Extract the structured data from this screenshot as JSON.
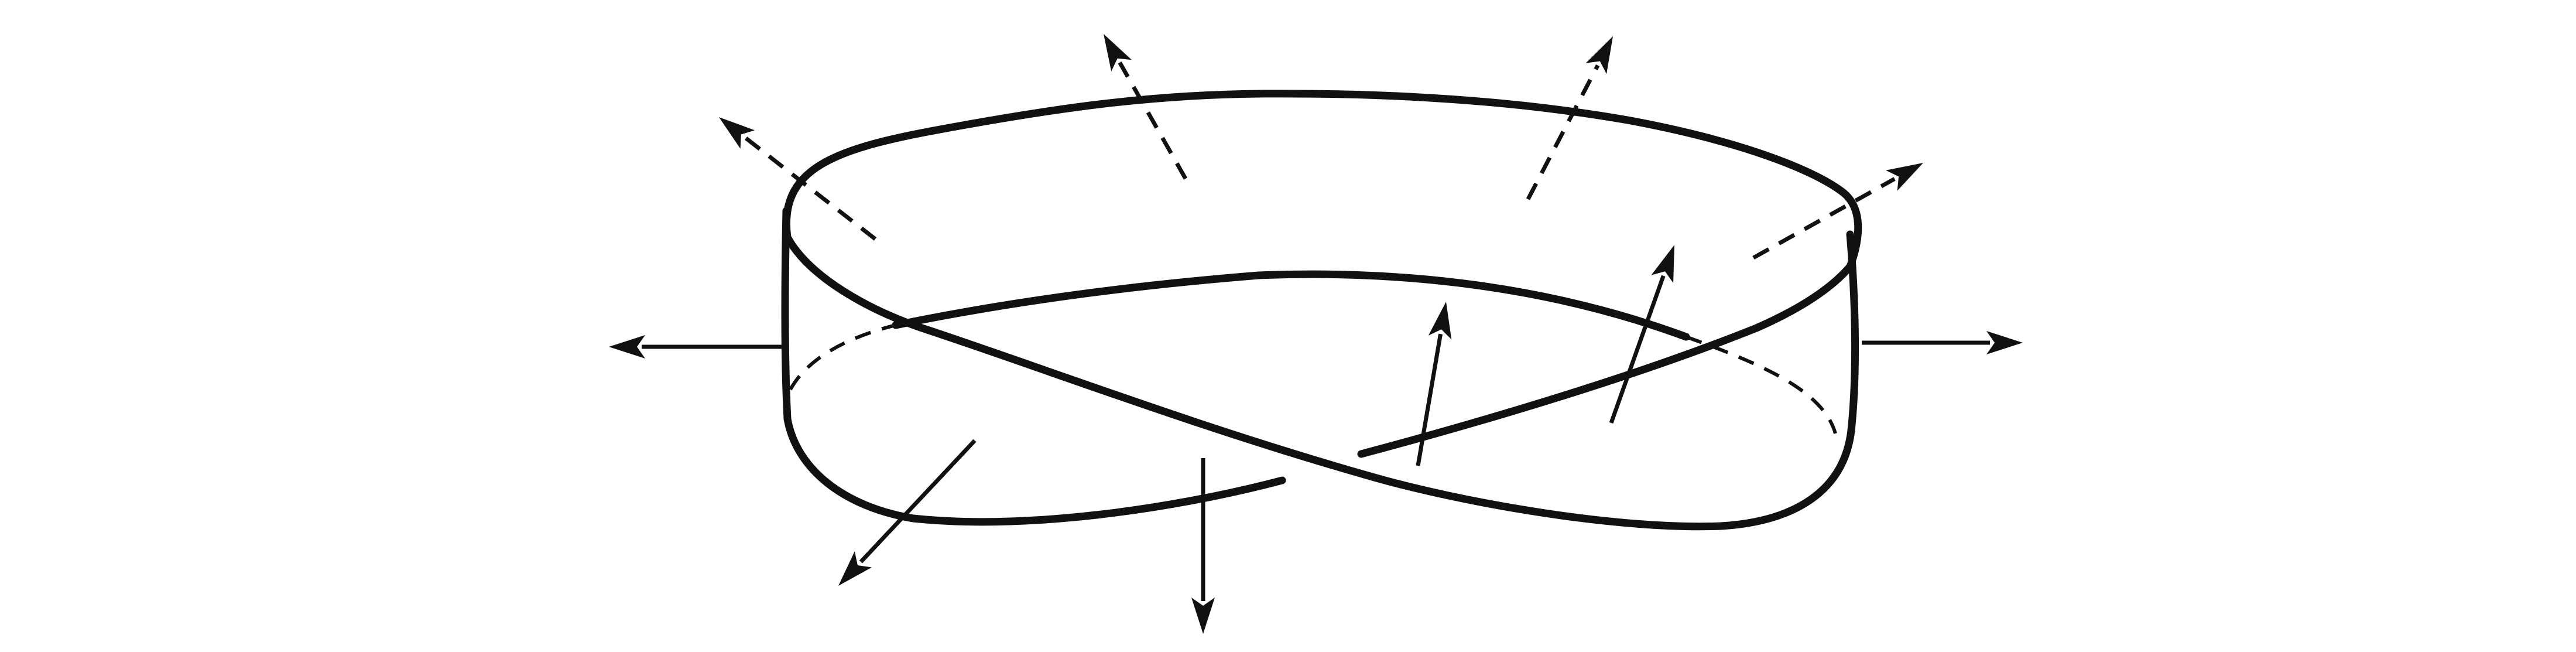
{
  "figure": {
    "subject": "mobius-strip",
    "icon": "mobius-strip-icon",
    "stroke_color": "#111111",
    "background_color": "#ffffff"
  },
  "normal_vectors": {
    "count": 10,
    "style": "solid outside the surface, dashed where hidden behind the strip"
  }
}
